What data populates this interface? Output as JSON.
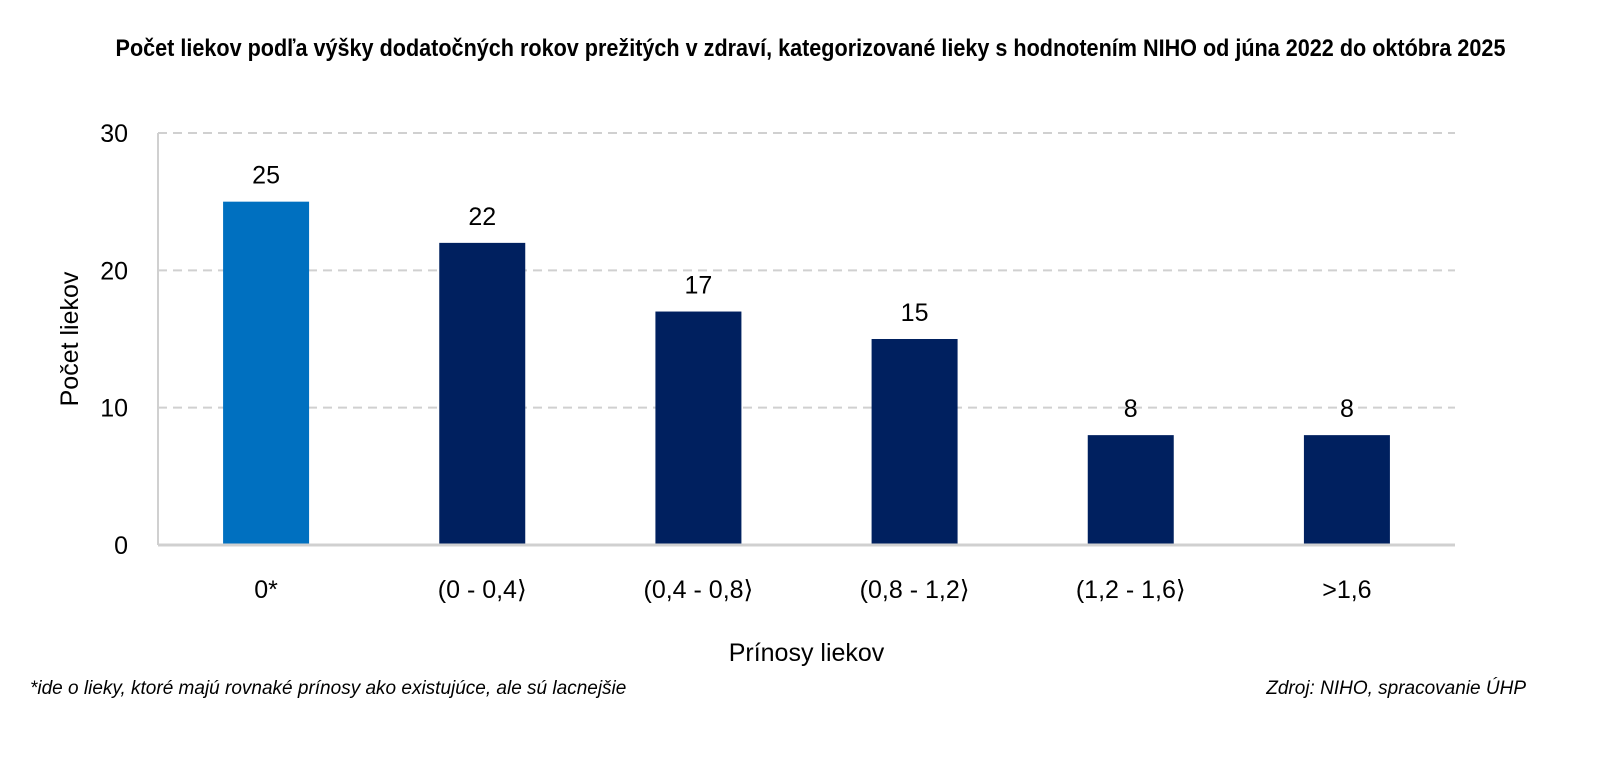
{
  "chart_data": {
    "type": "bar",
    "title": "Počet liekov podľa výšky dodatočných rokov prežitých v zdraví, kategorizované lieky s hodnotením NIHO od júna 2022 do októbra 2025",
    "xlabel": "Prínosy liekov",
    "ylabel": "Počet liekov",
    "categories": [
      "0*",
      "(0 - 0,4⟩",
      "(0,4 - 0,8⟩",
      "(0,8 - 1,2⟩",
      "(1,2 - 1,6⟩",
      ">1,6"
    ],
    "values": [
      25,
      22,
      17,
      15,
      8,
      8
    ],
    "bar_colors": [
      "#0070C0",
      "#00205F",
      "#00205F",
      "#00205F",
      "#00205F",
      "#00205F"
    ],
    "ylim": [
      0,
      30
    ],
    "yticks": [
      0,
      10,
      20,
      30
    ],
    "grid": true,
    "legend": "none"
  },
  "footnote": "*ide o lieky, ktoré majú rovnaké prínosy ako existujúce, ale sú lacnejšie",
  "source": "Zdroj: NIHO, spracovanie ÚHP"
}
